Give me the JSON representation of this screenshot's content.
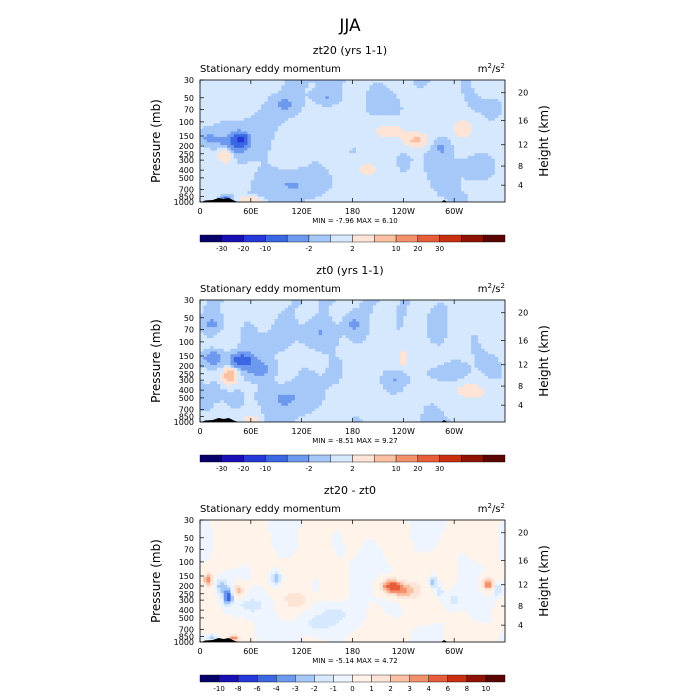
{
  "figure_title": "JJA",
  "chart_data": [
    {
      "type": "heatmap",
      "title": "zt20 (yrs 1-1)",
      "subtitle": "Stationary eddy momentum",
      "units": "m²/s²",
      "units_base": "m",
      "units_sup": "2",
      "units_mid": "/s",
      "units_sup2": "2",
      "ylabel": "Pressure (mb)",
      "ylabel_right": "Height (km)",
      "xlabel": "",
      "x_ticks": [
        "0",
        "60E",
        "120E",
        "180",
        "120W",
        "60W"
      ],
      "x_tick_lon": [
        0,
        60,
        120,
        180,
        240,
        300
      ],
      "xlim": [
        0,
        360
      ],
      "y_ticks": [
        "30",
        "50",
        "70",
        "100",
        "150",
        "200",
        "250",
        "300",
        "400",
        "500",
        "700",
        "850",
        "1000"
      ],
      "y_tick_p": [
        30,
        50,
        70,
        100,
        150,
        200,
        250,
        300,
        400,
        500,
        700,
        850,
        1000
      ],
      "ylim": [
        1000,
        30
      ],
      "y_ticks_right": [
        "20",
        "16",
        "12",
        "8",
        "4"
      ],
      "y_tick_right_km": [
        20,
        16,
        12,
        8,
        4
      ],
      "stats_text": "MIN =   -7.96   MAX =    6.10",
      "min": -7.96,
      "max": 6.1,
      "contour_levels": [
        -30,
        -20,
        -10,
        -5,
        -2,
        0,
        2,
        5,
        10,
        20,
        30
      ],
      "colorbar_labels": [
        "-30",
        "-20",
        "-10",
        "-2",
        "2",
        "10",
        "20",
        "30"
      ],
      "colorbar_label_levels": [
        -30,
        -20,
        -10,
        -2,
        2,
        10,
        20,
        30
      ],
      "colors": [
        "#08006a",
        "#1a0fb4",
        "#2439d8",
        "#3b67e4",
        "#6d99ef",
        "#a6c8f8",
        "#d6e8fd",
        "#fde4d6",
        "#fbc0a2",
        "#f3916d",
        "#e75d39",
        "#c93010",
        "#8f1304",
        "#5a0602"
      ],
      "anomalies": [
        {
          "lon": 10,
          "p": 160,
          "v": -3,
          "slon": 8,
          "slog": 0.06
        },
        {
          "lon": 48,
          "p": 165,
          "v": -9,
          "slon": 7,
          "slog": 0.06
        },
        {
          "lon": 40,
          "p": 200,
          "v": -4,
          "slon": 12,
          "slog": 0.09
        },
        {
          "lon": 30,
          "p": 260,
          "v": 6,
          "slon": 7,
          "slog": 0.07
        },
        {
          "lon": 100,
          "p": 60,
          "v": -2.5,
          "slon": 10,
          "slog": 0.07
        },
        {
          "lon": 150,
          "p": 50,
          "v": -2.5,
          "slon": 10,
          "slog": 0.07
        },
        {
          "lon": 255,
          "p": 170,
          "v": 5.5,
          "slon": 10,
          "slog": 0.06
        },
        {
          "lon": 225,
          "p": 130,
          "v": 3,
          "slon": 15,
          "slog": 0.08
        },
        {
          "lon": 195,
          "p": 400,
          "v": 2.5,
          "slon": 12,
          "slog": 0.1
        },
        {
          "lon": 310,
          "p": 120,
          "v": 3,
          "slon": 10,
          "slog": 0.08
        },
        {
          "lon": 330,
          "p": 350,
          "v": -2.5,
          "slon": 14,
          "slog": 0.1
        },
        {
          "lon": 285,
          "p": 210,
          "v": -2.5,
          "slon": 6,
          "slog": 0.06
        },
        {
          "lon": 110,
          "p": 600,
          "v": -2.5,
          "slon": 22,
          "slog": 0.12
        },
        {
          "lon": 60,
          "p": 930,
          "v": 6,
          "slon": 8,
          "slog": 0.025
        },
        {
          "lon": 30,
          "p": 900,
          "v": -6,
          "slon": 5,
          "slog": 0.025
        }
      ]
    },
    {
      "type": "heatmap",
      "title": "zt0 (yrs 1-1)",
      "subtitle": "Stationary eddy momentum",
      "units": "m²/s²",
      "units_base": "m",
      "units_sup": "2",
      "units_mid": "/s",
      "units_sup2": "2",
      "ylabel": "Pressure (mb)",
      "ylabel_right": "Height (km)",
      "xlabel": "",
      "x_ticks": [
        "0",
        "60E",
        "120E",
        "180",
        "120W",
        "60W"
      ],
      "x_tick_lon": [
        0,
        60,
        120,
        180,
        240,
        300
      ],
      "xlim": [
        0,
        360
      ],
      "y_ticks": [
        "30",
        "50",
        "70",
        "100",
        "150",
        "200",
        "250",
        "300",
        "400",
        "500",
        "700",
        "850",
        "1000"
      ],
      "y_tick_p": [
        30,
        50,
        70,
        100,
        150,
        200,
        250,
        300,
        400,
        500,
        700,
        850,
        1000
      ],
      "ylim": [
        1000,
        30
      ],
      "y_ticks_right": [
        "20",
        "16",
        "12",
        "8",
        "4"
      ],
      "y_tick_right_km": [
        20,
        16,
        12,
        8,
        4
      ],
      "stats_text": "MIN =   -8.51   MAX =    9.27",
      "min": -8.51,
      "max": 9.27,
      "contour_levels": [
        -30,
        -20,
        -10,
        -5,
        -2,
        0,
        2,
        5,
        10,
        20,
        30
      ],
      "colorbar_labels": [
        "-30",
        "-20",
        "-10",
        "-2",
        "2",
        "10",
        "20",
        "30"
      ],
      "colorbar_label_levels": [
        -30,
        -20,
        -10,
        -2,
        2,
        10,
        20,
        30
      ],
      "colors": [
        "#08006a",
        "#1a0fb4",
        "#2439d8",
        "#3b67e4",
        "#6d99ef",
        "#a6c8f8",
        "#d6e8fd",
        "#fde4d6",
        "#fbc0a2",
        "#f3916d",
        "#e75d39",
        "#c93010",
        "#8f1304",
        "#5a0602"
      ],
      "anomalies": [
        {
          "lon": 15,
          "p": 160,
          "v": -5,
          "slon": 8,
          "slog": 0.06
        },
        {
          "lon": 50,
          "p": 170,
          "v": -8.5,
          "slon": 9,
          "slog": 0.06
        },
        {
          "lon": 35,
          "p": 270,
          "v": 9,
          "slon": 6,
          "slog": 0.07
        },
        {
          "lon": 70,
          "p": 220,
          "v": -3,
          "slon": 14,
          "slog": 0.08
        },
        {
          "lon": 140,
          "p": 80,
          "v": -2.5,
          "slon": 16,
          "slog": 0.12
        },
        {
          "lon": 100,
          "p": 500,
          "v": -2.5,
          "slon": 20,
          "slog": 0.12
        },
        {
          "lon": 240,
          "p": 160,
          "v": 4,
          "slon": 4,
          "slog": 0.06
        },
        {
          "lon": 230,
          "p": 300,
          "v": -2.5,
          "slon": 8,
          "slog": 0.08
        },
        {
          "lon": 290,
          "p": 250,
          "v": -2.5,
          "slon": 15,
          "slog": 0.08
        },
        {
          "lon": 180,
          "p": 60,
          "v": -2.5,
          "slon": 8,
          "slog": 0.08
        },
        {
          "lon": 15,
          "p": 60,
          "v": -2.5,
          "slon": 8,
          "slog": 0.08
        },
        {
          "lon": 60,
          "p": 930,
          "v": 5,
          "slon": 6,
          "slog": 0.025
        },
        {
          "lon": 320,
          "p": 400,
          "v": 2.5,
          "slon": 20,
          "slog": 0.1
        }
      ]
    },
    {
      "type": "heatmap",
      "title": "zt20 - zt0",
      "subtitle": "Stationary eddy momentum",
      "units": "m²/s²",
      "units_base": "m",
      "units_sup": "2",
      "units_mid": "/s",
      "units_sup2": "2",
      "ylabel": "Pressure (mb)",
      "ylabel_right": "Height (km)",
      "xlabel": "",
      "x_ticks": [
        "0",
        "60E",
        "120E",
        "180",
        "120W",
        "60W"
      ],
      "x_tick_lon": [
        0,
        60,
        120,
        180,
        240,
        300
      ],
      "xlim": [
        0,
        360
      ],
      "y_ticks": [
        "30",
        "50",
        "70",
        "100",
        "150",
        "200",
        "250",
        "300",
        "400",
        "500",
        "700",
        "850",
        "1000"
      ],
      "y_tick_p": [
        30,
        50,
        70,
        100,
        150,
        200,
        250,
        300,
        400,
        500,
        700,
        850,
        1000
      ],
      "ylim": [
        1000,
        30
      ],
      "y_ticks_right": [
        "20",
        "16",
        "12",
        "8",
        "4"
      ],
      "y_tick_right_km": [
        20,
        16,
        12,
        8,
        4
      ],
      "stats_text": "MIN =   -5.14   MAX =    4.72",
      "min": -5.14,
      "max": 4.72,
      "contour_levels": [
        -10,
        -8,
        -6,
        -4,
        -3,
        -2,
        -1,
        0,
        1,
        2,
        3,
        4,
        6,
        8,
        10
      ],
      "colorbar_labels": [
        "-10",
        "-8",
        "-6",
        "-4",
        "-3",
        "-2",
        "-1",
        "0",
        "1",
        "2",
        "3",
        "4",
        "6",
        "8",
        "10"
      ],
      "colorbar_label_levels": [
        -10,
        -8,
        -6,
        -4,
        -3,
        -2,
        -1,
        0,
        1,
        2,
        3,
        4,
        6,
        8,
        10
      ],
      "colors": [
        "#08006a",
        "#1a0fb4",
        "#2439d8",
        "#3b67e4",
        "#6d99ef",
        "#a6c8f8",
        "#d6e8fd",
        "#eef5ff",
        "#fff3ea",
        "#fde4d6",
        "#fbc0a2",
        "#f3916d",
        "#e75d39",
        "#c93010",
        "#8f1304",
        "#5a0602"
      ],
      "anomalies": [
        {
          "lon": 10,
          "p": 165,
          "v": 3,
          "slon": 4,
          "slog": 0.06
        },
        {
          "lon": 33,
          "p": 270,
          "v": -5,
          "slon": 4,
          "slog": 0.07
        },
        {
          "lon": 25,
          "p": 200,
          "v": -2.5,
          "slon": 5,
          "slog": 0.06
        },
        {
          "lon": 45,
          "p": 230,
          "v": 2.5,
          "slon": 5,
          "slog": 0.06
        },
        {
          "lon": 90,
          "p": 160,
          "v": -3,
          "slon": 4,
          "slog": 0.06
        },
        {
          "lon": 115,
          "p": 300,
          "v": 1.5,
          "slon": 10,
          "slog": 0.08
        },
        {
          "lon": 60,
          "p": 350,
          "v": -1.5,
          "slon": 12,
          "slog": 0.08
        },
        {
          "lon": 225,
          "p": 200,
          "v": 4.7,
          "slon": 8,
          "slog": 0.06
        },
        {
          "lon": 240,
          "p": 230,
          "v": 3,
          "slon": 10,
          "slog": 0.07
        },
        {
          "lon": 275,
          "p": 180,
          "v": -3.5,
          "slon": 3,
          "slog": 0.06
        },
        {
          "lon": 283,
          "p": 240,
          "v": -2,
          "slon": 3,
          "slog": 0.06
        },
        {
          "lon": 300,
          "p": 300,
          "v": -1.5,
          "slon": 5,
          "slog": 0.06
        },
        {
          "lon": 340,
          "p": 190,
          "v": 4,
          "slon": 5,
          "slog": 0.06
        },
        {
          "lon": 352,
          "p": 220,
          "v": -2.5,
          "slon": 4,
          "slog": 0.06
        },
        {
          "lon": 160,
          "p": 450,
          "v": -1.5,
          "slon": 12,
          "slog": 0.08
        },
        {
          "lon": 40,
          "p": 900,
          "v": 3,
          "slon": 5,
          "slog": 0.025
        },
        {
          "lon": 15,
          "p": 880,
          "v": -2.5,
          "slon": 5,
          "slog": 0.025
        },
        {
          "lon": 140,
          "p": 600,
          "v": -1.5,
          "slon": 15,
          "slog": 0.1
        }
      ]
    }
  ]
}
